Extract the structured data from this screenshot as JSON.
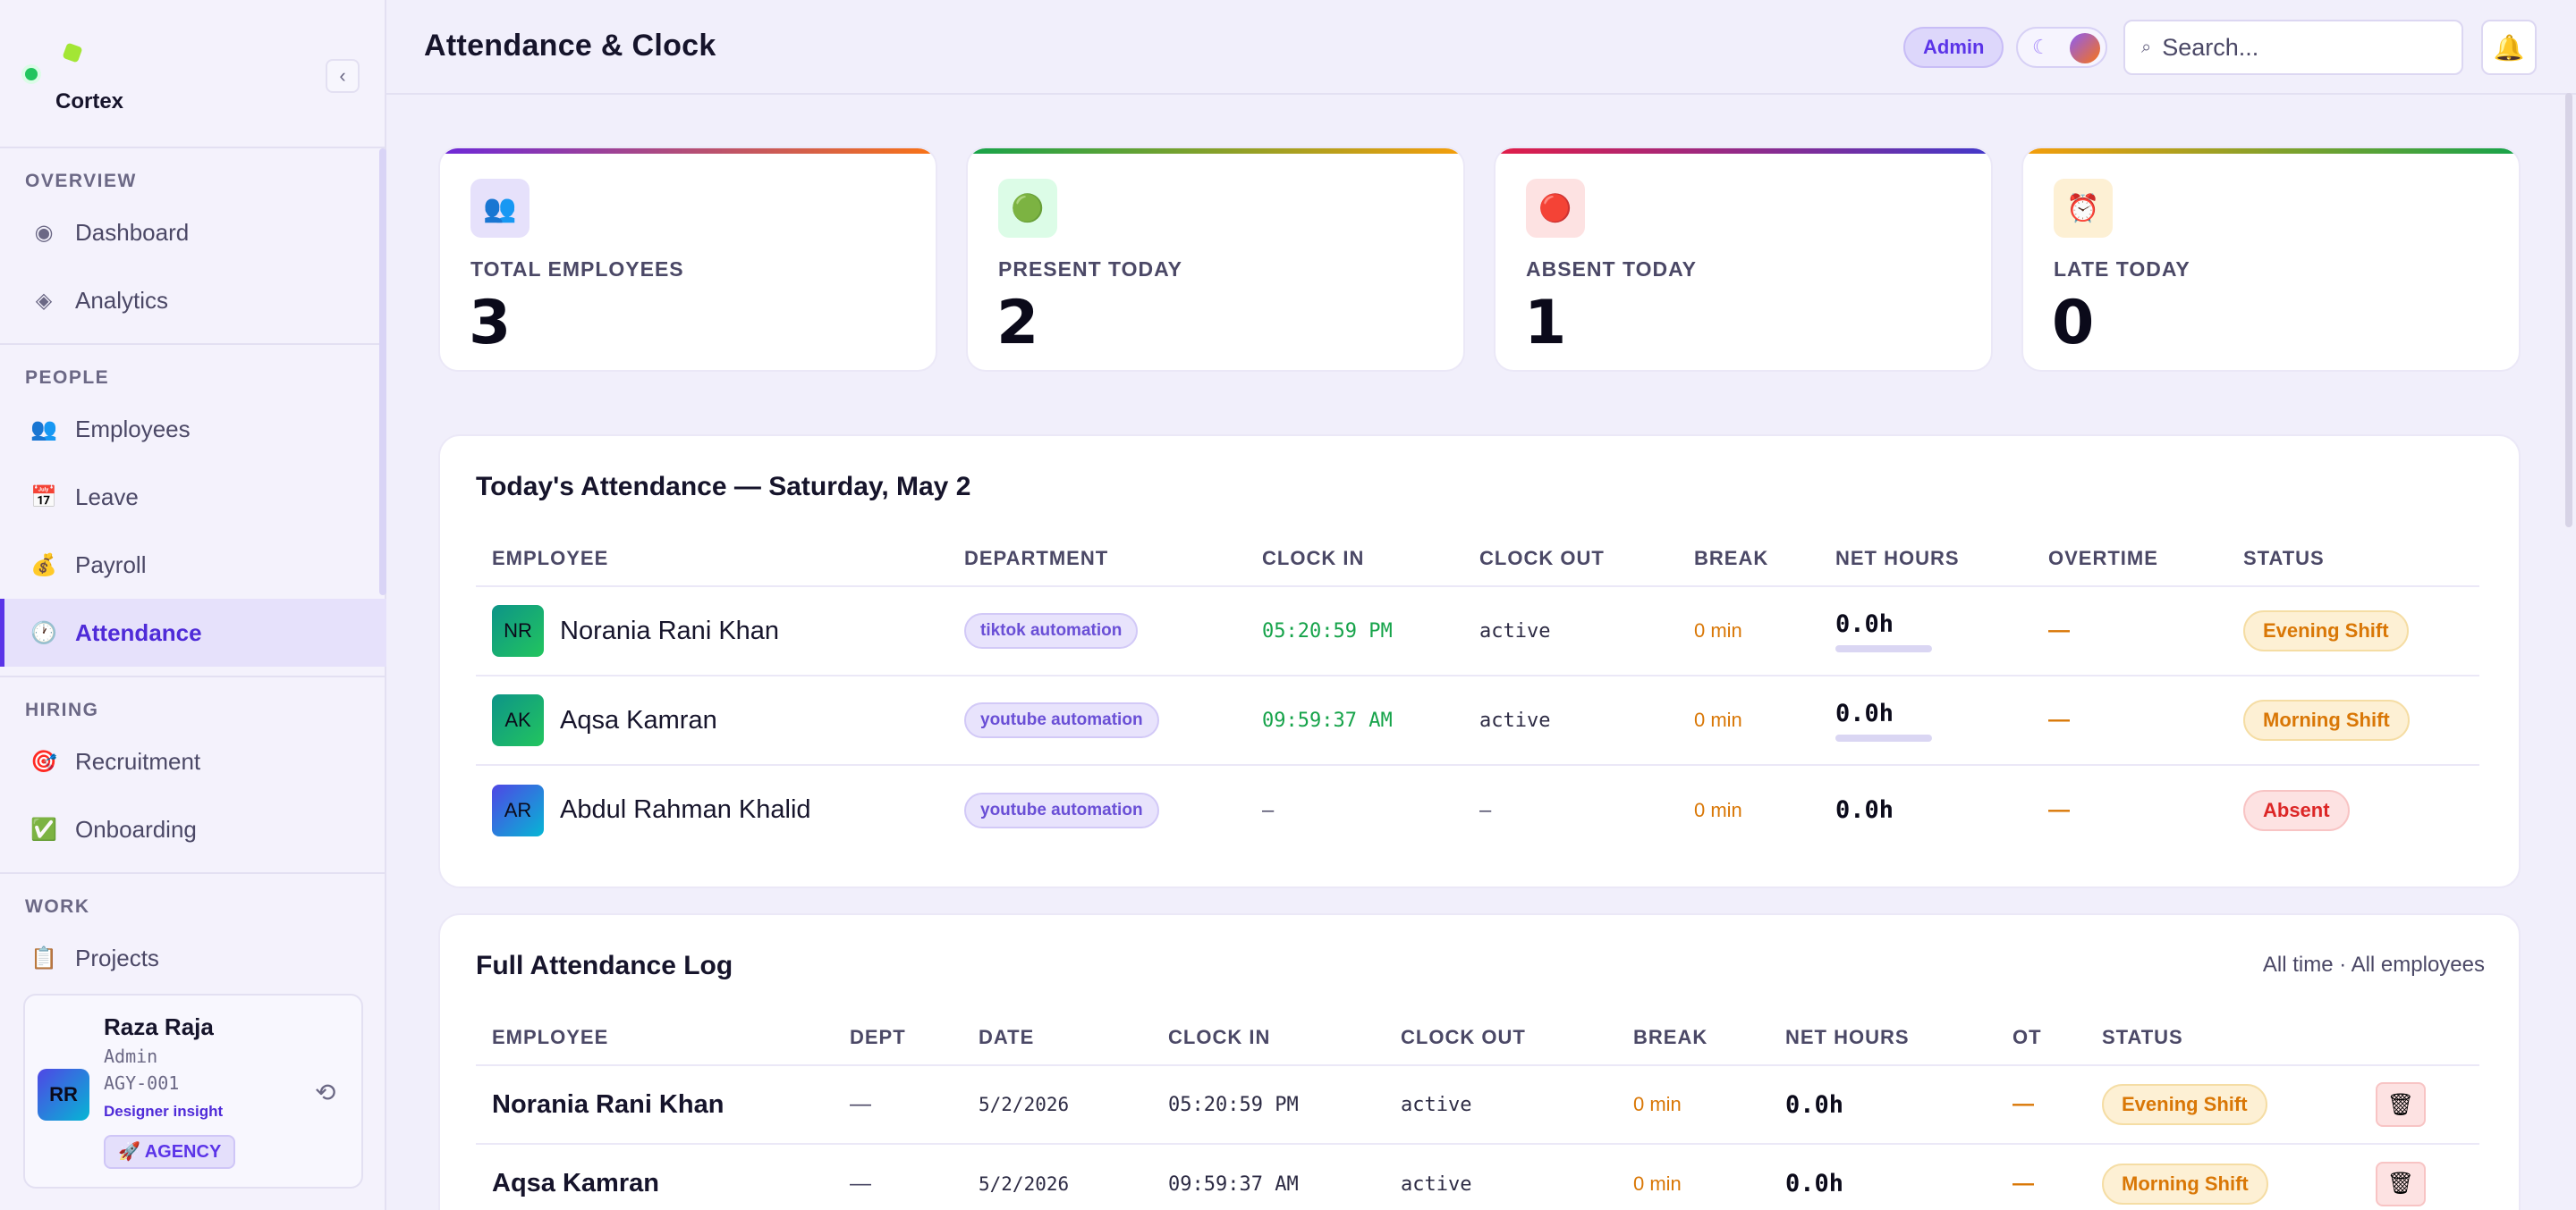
{
  "brand": {
    "name": "Cortex",
    "collapse_icon": "‹"
  },
  "nav": {
    "overview": {
      "label": "OVERVIEW",
      "items": [
        {
          "label": "Dashboard",
          "icon": "◉"
        },
        {
          "label": "Analytics",
          "icon": "◈"
        }
      ]
    },
    "people": {
      "label": "PEOPLE",
      "items": [
        {
          "label": "Employees",
          "icon": "👥"
        },
        {
          "label": "Leave",
          "icon": "📅"
        },
        {
          "label": "Payroll",
          "icon": "💰"
        },
        {
          "label": "Attendance",
          "icon": "🕐"
        }
      ]
    },
    "hiring": {
      "label": "HIRING",
      "items": [
        {
          "label": "Recruitment",
          "icon": "🎯"
        },
        {
          "label": "Onboarding",
          "icon": "✅"
        }
      ]
    },
    "work": {
      "label": "WORK",
      "items": [
        {
          "label": "Projects",
          "icon": "📋"
        }
      ]
    }
  },
  "user": {
    "initials": "RR",
    "name": "Raza Raja",
    "role": "Admin",
    "id": "AGY-001",
    "insight": "Designer insight",
    "badge": "🚀 AGENCY",
    "history_icon": "⟲"
  },
  "header": {
    "title": "Attendance & Clock",
    "role_pill": "Admin",
    "theme_icon": "☾",
    "search_icon": "⌕",
    "search_placeholder": "Search...",
    "bell_icon": "🔔"
  },
  "stats": [
    {
      "label": "TOTAL EMPLOYEES",
      "value": "3",
      "icon": "👥"
    },
    {
      "label": "PRESENT TODAY",
      "value": "2",
      "icon": "🟢"
    },
    {
      "label": "ABSENT TODAY",
      "value": "1",
      "icon": "🔴"
    },
    {
      "label": "LATE TODAY",
      "value": "0",
      "icon": "⏰"
    }
  ],
  "today": {
    "title": "Today's Attendance — Saturday, May 2",
    "columns": [
      "EMPLOYEE",
      "DEPARTMENT",
      "CLOCK IN",
      "CLOCK OUT",
      "BREAK",
      "NET HOURS",
      "OVERTIME",
      "STATUS"
    ],
    "rows": [
      {
        "initials": "NR",
        "name": "Norania Rani Khan",
        "department": "tiktok automation",
        "clock_in": "05:20:59 PM",
        "clock_out": "active",
        "break": "0 min",
        "net": "0.0h",
        "overtime": "—",
        "status": "Evening Shift"
      },
      {
        "initials": "AK",
        "name": "Aqsa Kamran",
        "department": "youtube automation",
        "clock_in": "09:59:37 AM",
        "clock_out": "active",
        "break": "0 min",
        "net": "0.0h",
        "overtime": "—",
        "status": "Morning Shift"
      },
      {
        "initials": "AR",
        "name": "Abdul Rahman Khalid",
        "department": "youtube automation",
        "clock_in": "–",
        "clock_out": "–",
        "break": "0 min",
        "net": "0.0h",
        "overtime": "—",
        "status": "Absent"
      }
    ]
  },
  "log": {
    "title": "Full Attendance Log",
    "meta": "All time · All employees",
    "columns": [
      "EMPLOYEE",
      "DEPT",
      "DATE",
      "CLOCK IN",
      "CLOCK OUT",
      "BREAK",
      "NET HOURS",
      "OT",
      "STATUS"
    ],
    "delete_icon": "🗑",
    "rows": [
      {
        "name": "Norania Rani Khan",
        "dept": "—",
        "date": "5/2/2026",
        "clock_in": "05:20:59 PM",
        "clock_out": "active",
        "break": "0 min",
        "net": "0.0h",
        "ot": "—",
        "status": "Evening Shift"
      },
      {
        "name": "Aqsa Kamran",
        "dept": "—",
        "date": "5/2/2026",
        "clock_in": "09:59:37 AM",
        "clock_out": "active",
        "break": "0 min",
        "net": "0.0h",
        "ot": "—",
        "status": "Morning Shift"
      }
    ]
  }
}
